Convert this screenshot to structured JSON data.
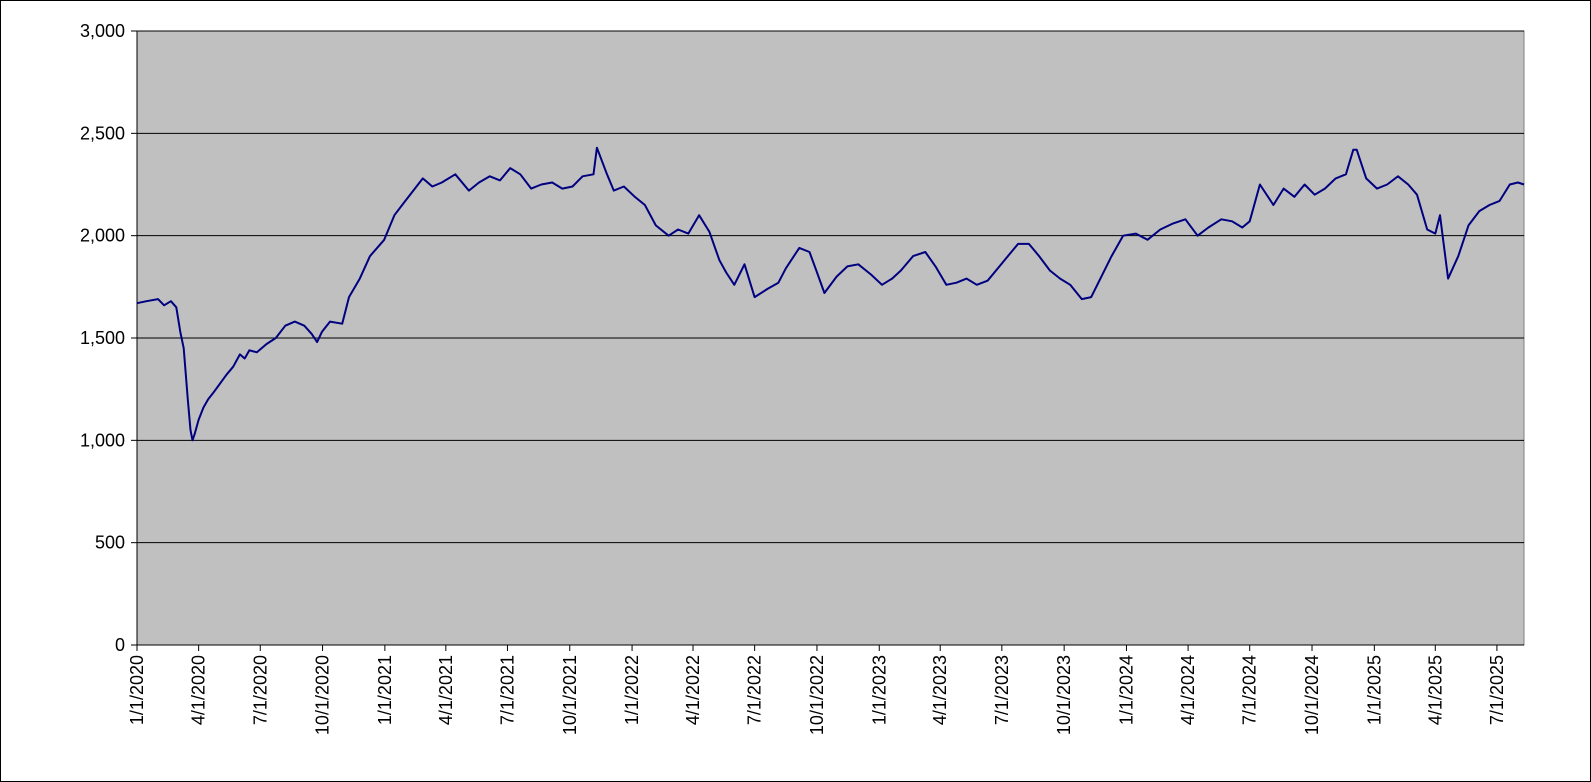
{
  "chart_data": {
    "type": "line",
    "title": "",
    "xlabel": "",
    "ylabel": "",
    "ylim": [
      0,
      3000
    ],
    "yticks": [
      "0",
      "500",
      "1,000",
      "1,500",
      "2,000",
      "2,500",
      "3,000"
    ],
    "xlim": [
      "2020-01-01",
      "2025-08-10"
    ],
    "xticks": [
      "1/1/2020",
      "4/1/2020",
      "7/1/2020",
      "10/1/2020",
      "1/1/2021",
      "4/1/2021",
      "7/1/2021",
      "10/1/2021",
      "1/1/2022",
      "4/1/2022",
      "7/1/2022",
      "10/1/2022",
      "1/1/2023",
      "4/1/2023",
      "7/1/2023",
      "10/1/2023",
      "1/1/2024",
      "4/1/2024",
      "7/1/2024",
      "10/1/2024",
      "1/1/2025",
      "4/1/2025",
      "7/1/2025"
    ],
    "grid": true,
    "legend": "none",
    "colors": {
      "plot_background": "#c0c0c0",
      "line": "#000080",
      "gridline": "#000000"
    },
    "series": [
      {
        "x": [
          "2020-01-01",
          "2020-01-15",
          "2020-02-01",
          "2020-02-10",
          "2020-02-20",
          "2020-02-28",
          "2020-03-05",
          "2020-03-10",
          "2020-03-16",
          "2020-03-20",
          "2020-03-23",
          "2020-03-26",
          "2020-04-01",
          "2020-04-08",
          "2020-04-15",
          "2020-04-22",
          "2020-05-01",
          "2020-05-12",
          "2020-05-22",
          "2020-06-01",
          "2020-06-08",
          "2020-06-15",
          "2020-06-26",
          "2020-07-10",
          "2020-07-24",
          "2020-08-07",
          "2020-08-21",
          "2020-09-04",
          "2020-09-15",
          "2020-09-23",
          "2020-09-30",
          "2020-10-12",
          "2020-10-30",
          "2020-11-09",
          "2020-11-25",
          "2020-12-10",
          "2020-12-31",
          "2021-01-15",
          "2021-01-29",
          "2021-02-12",
          "2021-02-26",
          "2021-03-12",
          "2021-03-26",
          "2021-04-15",
          "2021-05-05",
          "2021-05-20",
          "2021-06-05",
          "2021-06-20",
          "2021-07-05",
          "2021-07-20",
          "2021-08-05",
          "2021-08-20",
          "2021-09-05",
          "2021-09-20",
          "2021-10-05",
          "2021-10-20",
          "2021-11-05",
          "2021-11-10",
          "2021-11-25",
          "2021-12-05",
          "2021-12-20",
          "2022-01-05",
          "2022-01-20",
          "2022-02-05",
          "2022-02-24",
          "2022-03-10",
          "2022-03-25",
          "2022-04-10",
          "2022-04-25",
          "2022-05-10",
          "2022-05-20",
          "2022-06-01",
          "2022-06-16",
          "2022-07-01",
          "2022-07-20",
          "2022-08-05",
          "2022-08-16",
          "2022-09-05",
          "2022-09-20",
          "2022-09-30",
          "2022-10-12",
          "2022-10-30",
          "2022-11-15",
          "2022-12-01",
          "2022-12-20",
          "2023-01-05",
          "2023-01-20",
          "2023-02-02",
          "2023-02-20",
          "2023-03-10",
          "2023-03-25",
          "2023-04-10",
          "2023-04-25",
          "2023-05-10",
          "2023-05-25",
          "2023-06-10",
          "2023-06-25",
          "2023-07-10",
          "2023-07-25",
          "2023-08-10",
          "2023-08-25",
          "2023-09-10",
          "2023-09-25",
          "2023-10-10",
          "2023-10-27",
          "2023-11-10",
          "2023-11-25",
          "2023-12-10",
          "2023-12-27",
          "2024-01-15",
          "2024-02-01",
          "2024-02-20",
          "2024-03-10",
          "2024-03-28",
          "2024-04-15",
          "2024-05-01",
          "2024-05-20",
          "2024-06-05",
          "2024-06-20",
          "2024-07-01",
          "2024-07-16",
          "2024-08-05",
          "2024-08-20",
          "2024-09-05",
          "2024-09-20",
          "2024-10-05",
          "2024-10-20",
          "2024-11-05",
          "2024-11-20",
          "2024-12-01",
          "2024-12-06",
          "2024-12-20",
          "2025-01-05",
          "2025-01-20",
          "2025-02-05",
          "2025-02-20",
          "2025-03-05",
          "2025-03-20",
          "2025-04-01",
          "2025-04-08",
          "2025-04-20",
          "2025-05-05",
          "2025-05-20",
          "2025-06-05",
          "2025-06-20",
          "2025-07-05",
          "2025-07-20",
          "2025-08-01",
          "2025-08-10"
        ],
        "values": [
          1670,
          1680,
          1690,
          1660,
          1680,
          1650,
          1530,
          1450,
          1200,
          1050,
          1000,
          1030,
          1100,
          1160,
          1200,
          1230,
          1270,
          1320,
          1360,
          1420,
          1400,
          1440,
          1430,
          1470,
          1500,
          1560,
          1580,
          1560,
          1520,
          1480,
          1530,
          1580,
          1570,
          1700,
          1790,
          1900,
          1980,
          2100,
          2160,
          2220,
          2280,
          2240,
          2260,
          2300,
          2220,
          2260,
          2290,
          2270,
          2330,
          2300,
          2230,
          2250,
          2260,
          2230,
          2240,
          2290,
          2300,
          2430,
          2300,
          2220,
          2240,
          2190,
          2150,
          2050,
          2000,
          2030,
          2010,
          2100,
          2020,
          1880,
          1820,
          1760,
          1860,
          1700,
          1740,
          1770,
          1840,
          1940,
          1920,
          1830,
          1720,
          1800,
          1850,
          1860,
          1810,
          1760,
          1790,
          1830,
          1900,
          1920,
          1850,
          1760,
          1770,
          1790,
          1760,
          1780,
          1840,
          1900,
          1960,
          1960,
          1900,
          1830,
          1790,
          1760,
          1690,
          1700,
          1800,
          1900,
          2000,
          2010,
          1980,
          2030,
          2060,
          2080,
          2000,
          2040,
          2080,
          2070,
          2040,
          2070,
          2250,
          2150,
          2230,
          2190,
          2250,
          2200,
          2230,
          2280,
          2300,
          2420,
          2420,
          2280,
          2230,
          2250,
          2290,
          2250,
          2200,
          2030,
          2010,
          2100,
          1790,
          1900,
          2050,
          2120,
          2150,
          2170,
          2250,
          2260,
          2250
        ]
      }
    ]
  }
}
